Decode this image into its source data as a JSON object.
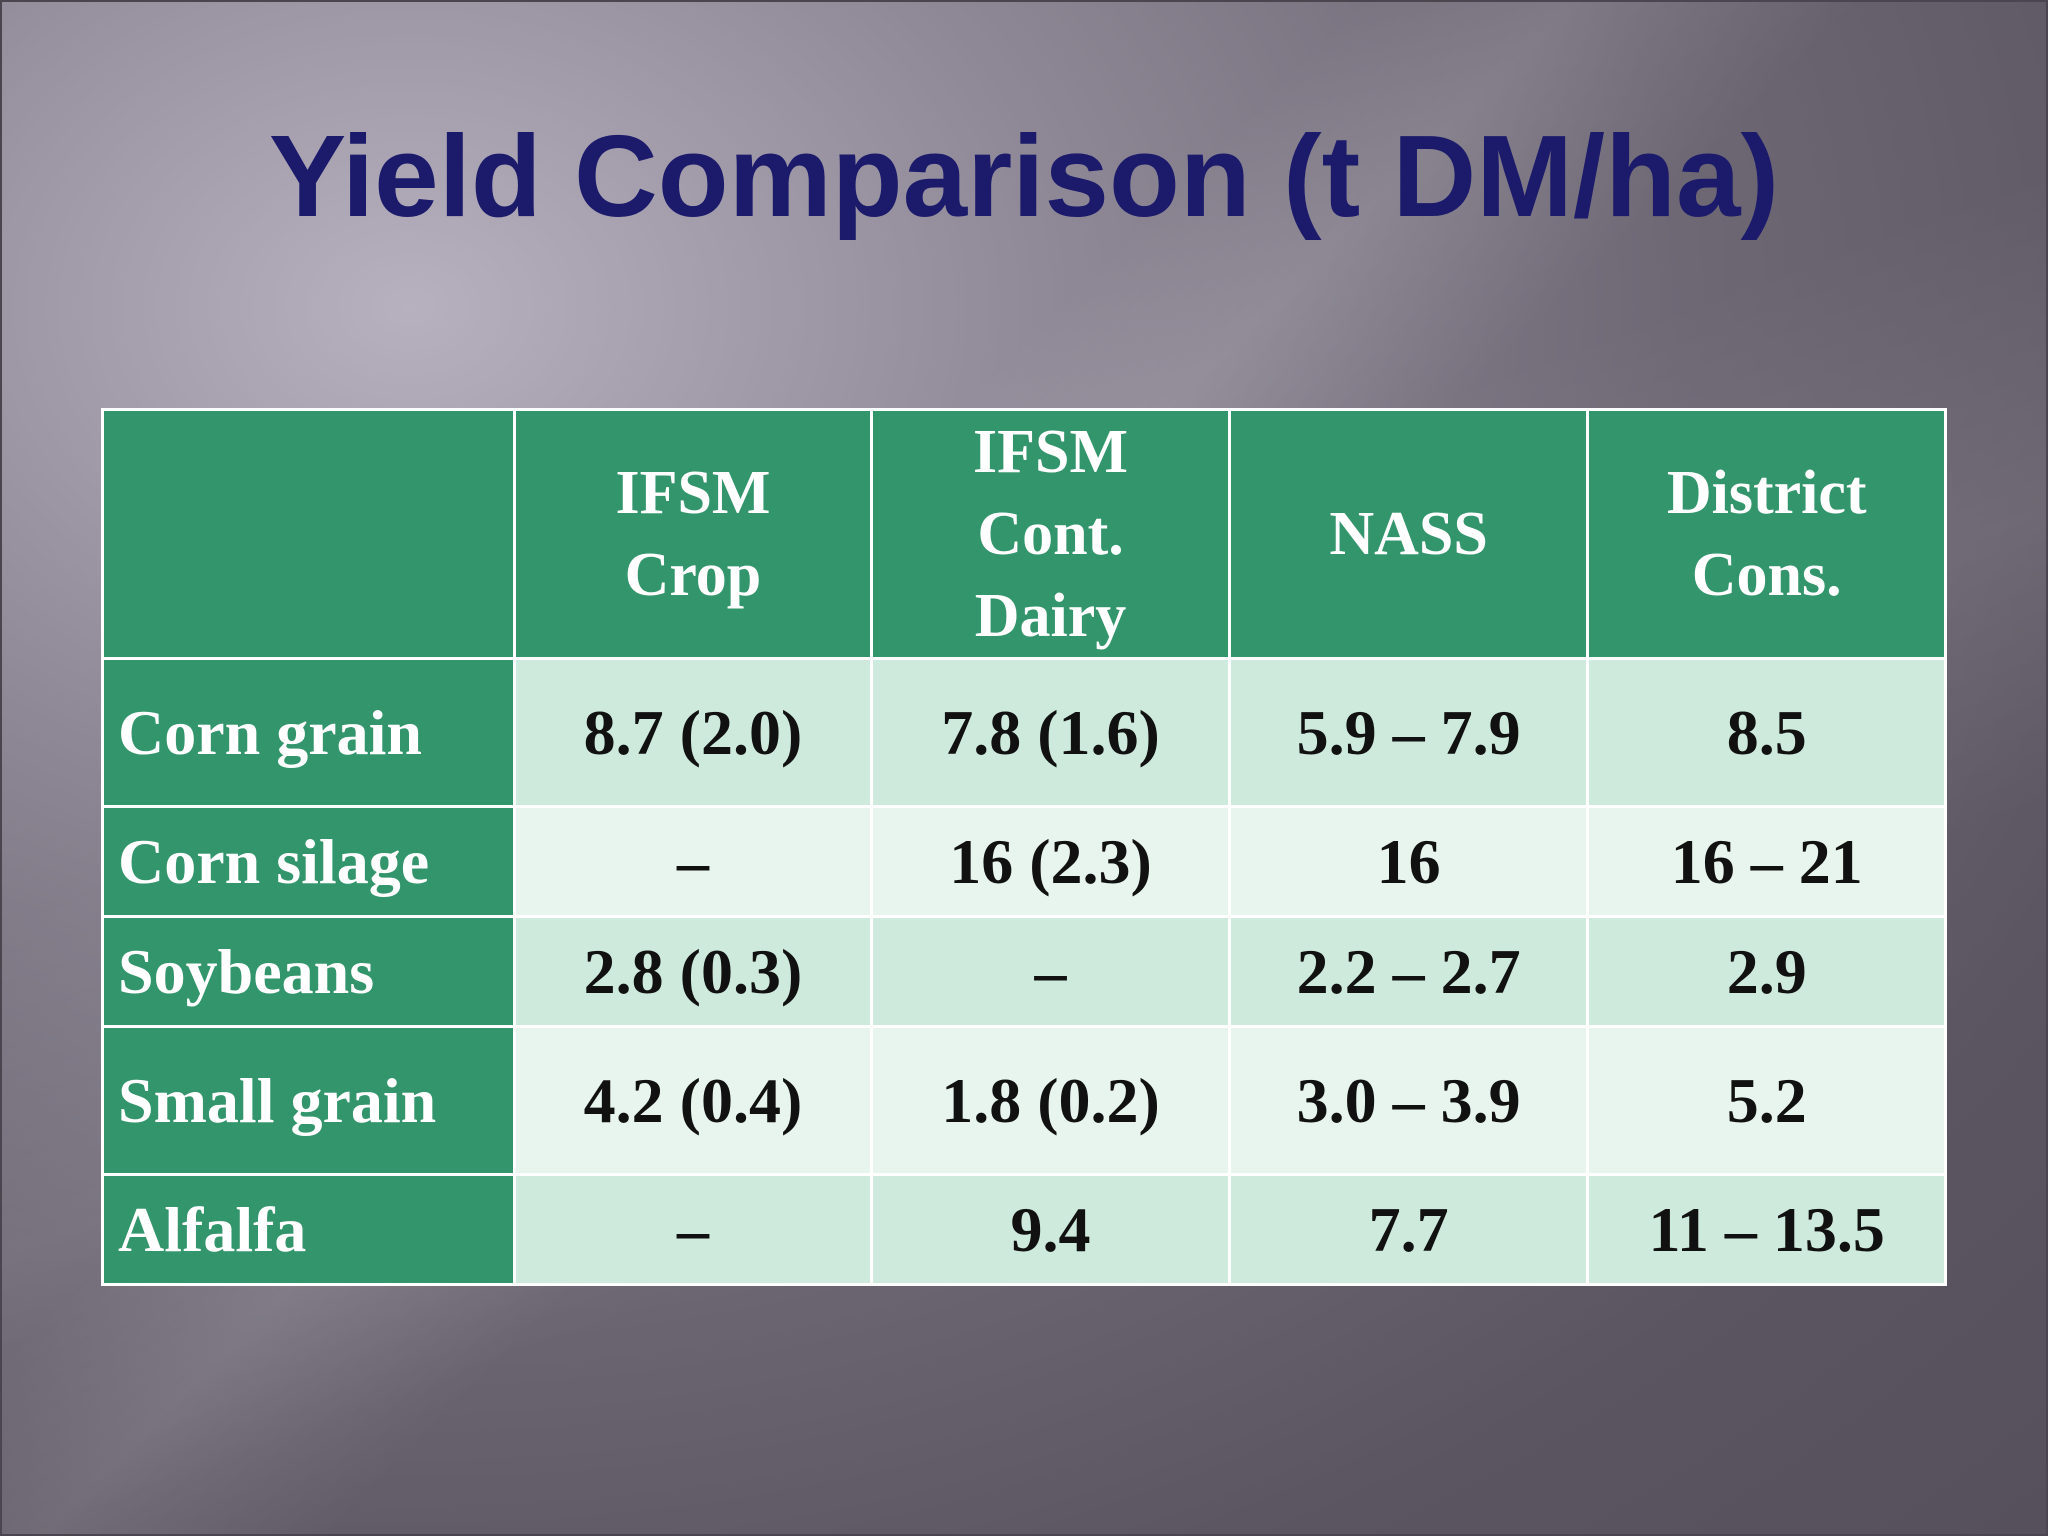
{
  "slide": {
    "title": "Yield Comparison (t DM/ha)"
  },
  "table": {
    "headers": [
      "",
      "IFSM Crop",
      "IFSM Cont. Dairy",
      "NASS",
      "District Cons."
    ],
    "header_lines": {
      "ifsm_crop": [
        "IFSM",
        "Crop"
      ],
      "ifsm_cont_dairy": [
        "IFSM",
        "Cont.",
        "Dairy"
      ],
      "nass": [
        "NASS"
      ],
      "district_cons": [
        "District",
        "Cons."
      ]
    },
    "rows": [
      {
        "label": "Corn grain",
        "ifsm_crop": "8.7 (2.0)",
        "ifsm_cont_dairy": "7.8 (1.6)",
        "nass": "5.9 – 7.9",
        "district_cons": "8.5"
      },
      {
        "label": "Corn silage",
        "ifsm_crop": "–",
        "ifsm_cont_dairy": "16 (2.3)",
        "nass": "16",
        "district_cons": "16 – 21"
      },
      {
        "label": "Soybeans",
        "ifsm_crop": "2.8 (0.3)",
        "ifsm_cont_dairy": "–",
        "nass": "2.2 – 2.7",
        "district_cons": "2.9"
      },
      {
        "label": "Small grain",
        "ifsm_crop": "4.2 (0.4)",
        "ifsm_cont_dairy": "1.8 (0.2)",
        "nass": "3.0 – 3.9",
        "district_cons": "5.2"
      },
      {
        "label": "Alfalfa",
        "ifsm_crop": "–",
        "ifsm_cont_dairy": "9.4",
        "nass": "7.7",
        "district_cons": "11 – 13.5"
      }
    ]
  },
  "colors": {
    "title": "#1b1a6b",
    "header_fill": "#33956c",
    "row_fill_a": "#cdeadc",
    "row_fill_b": "#e7f5ee",
    "background": "#6e6875"
  }
}
